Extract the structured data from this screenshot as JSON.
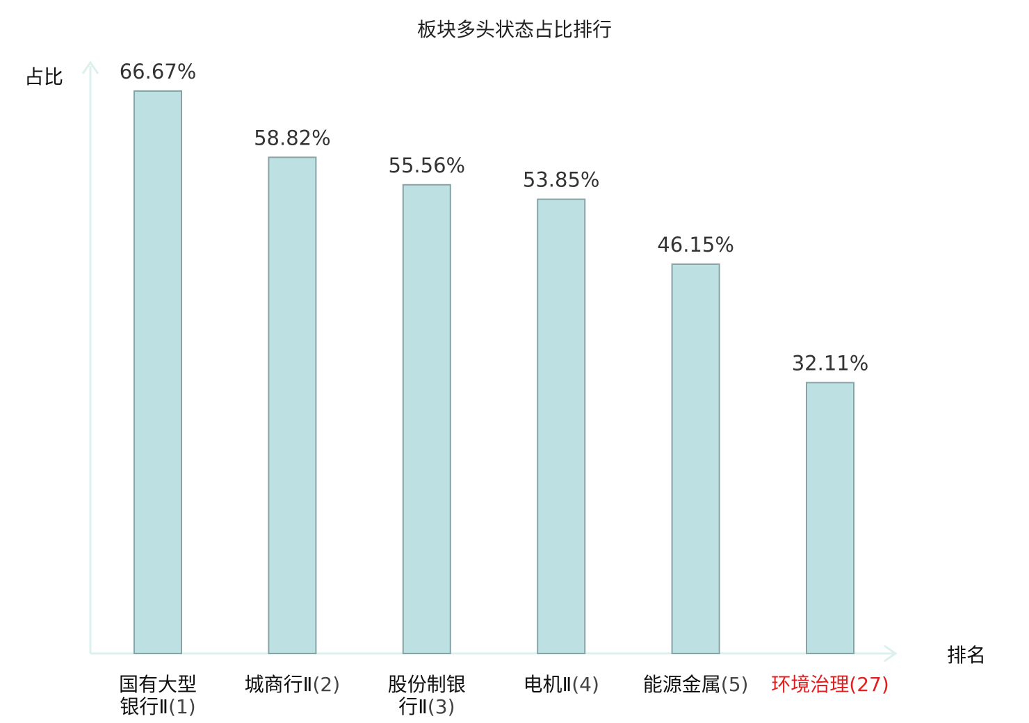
{
  "chart_data": {
    "type": "bar",
    "title": "板块多头状态占比排行",
    "ylabel": "占比",
    "xlabel": "排名",
    "ylim": [
      0,
      80
    ],
    "grid": false,
    "legend": "none",
    "categories": [
      {
        "lines": [
          "国有大型",
          "银行Ⅱ"
        ],
        "rank": "(1)",
        "highlight": false
      },
      {
        "lines": [
          "城商行Ⅱ"
        ],
        "rank": "(2)",
        "highlight": false
      },
      {
        "lines": [
          "股份制银",
          "行Ⅱ"
        ],
        "rank": "(3)",
        "highlight": false
      },
      {
        "lines": [
          "电机Ⅱ"
        ],
        "rank": "(4)",
        "highlight": false
      },
      {
        "lines": [
          "能源金属"
        ],
        "rank": "(5)",
        "highlight": false
      },
      {
        "lines": [
          "环境治理"
        ],
        "rank": "(27)",
        "highlight": true
      }
    ],
    "values": [
      66.67,
      58.82,
      55.56,
      53.85,
      46.15,
      32.11
    ],
    "value_labels": [
      "66.67%",
      "58.82%",
      "55.56%",
      "53.85%",
      "46.15%",
      "32.11%"
    ]
  },
  "colors": {
    "bar_fill": "#bde0e2",
    "bar_stroke": "#87a3a6",
    "axis": "#dcf0ee",
    "highlight_text": "#e02020"
  }
}
